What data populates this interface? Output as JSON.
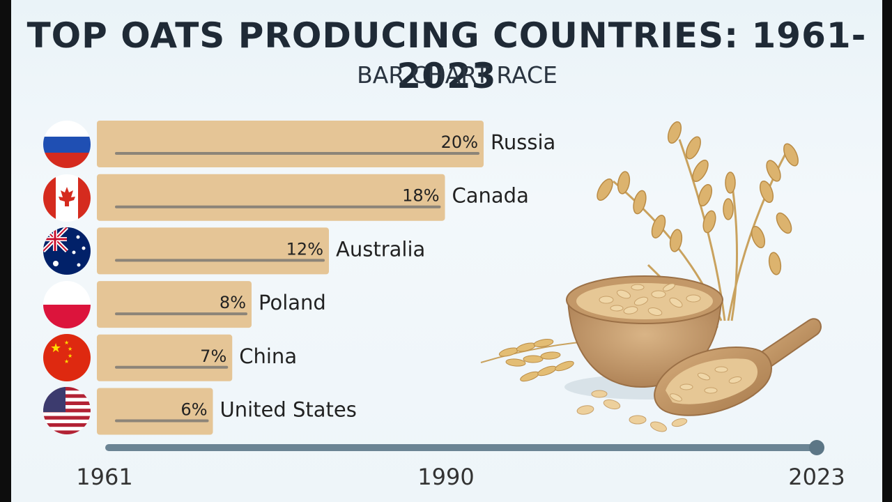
{
  "header": {
    "title": "TOP OATS PRODUCING COUNTRIES: 1961-2023",
    "subtitle": "BAR CHART RACE"
  },
  "chart_data": {
    "type": "bar",
    "orientation": "horizontal",
    "categories": [
      "Russia",
      "Canada",
      "Australia",
      "Poland",
      "China",
      "United States"
    ],
    "values": [
      20,
      18,
      12,
      8,
      7,
      6
    ],
    "value_labels": [
      "20%",
      "18%",
      "12%",
      "8%",
      "7%",
      "6%"
    ],
    "unit": "%",
    "flags": [
      "russia-flag-icon",
      "canada-flag-icon",
      "australia-flag-icon",
      "poland-flag-icon",
      "china-flag-icon",
      "usa-flag-icon"
    ],
    "bar_color": "#e5c596",
    "xlim": [
      0,
      20
    ],
    "grid": false
  },
  "timeline": {
    "labels": [
      "1961",
      "1990",
      "2023"
    ],
    "years": [
      1961,
      1990,
      2023
    ],
    "current_year": 2023,
    "start_year": 1961,
    "end_year": 2023,
    "color": "#6b8494"
  },
  "illustration": {
    "icon": "oats-bowl-scoop-illustration"
  }
}
